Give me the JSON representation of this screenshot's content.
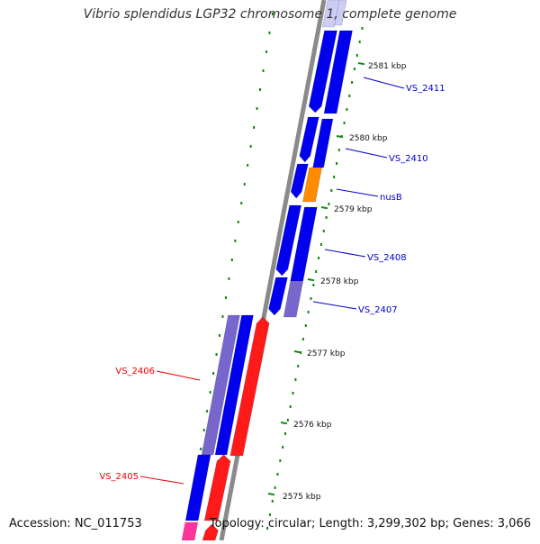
{
  "title": "Vibrio splendidus LGP32 chromosome 1, complete genome",
  "accession_text": "Accession: NC_011753",
  "summary_text": "Topology: circular; Length: 3,299,302 bp; Genes: 3,066",
  "colors": {
    "forward_gene": "#0000ee",
    "reverse_gene": "#ff1a1a",
    "rna_gene": "#ff8c00",
    "pseudo_gene": "#7766cc",
    "pink_gene": "#ff3399",
    "tick": "#118811",
    "backbone": "#808080",
    "forward_label": "#0000cc",
    "reverse_label": "#ee0000"
  },
  "ticks": [
    {
      "label": "2581 kbp"
    },
    {
      "label": "2580 kbp"
    },
    {
      "label": "2579 kbp"
    },
    {
      "label": "2578 kbp"
    },
    {
      "label": "2577 kbp"
    },
    {
      "label": "2576 kbp"
    },
    {
      "label": "2575 kbp"
    }
  ],
  "gene_labels": [
    {
      "name": "VS_2411",
      "strand": "forward"
    },
    {
      "name": "VS_2410",
      "strand": "forward"
    },
    {
      "name": "nusB",
      "strand": "forward"
    },
    {
      "name": "VS_2408",
      "strand": "forward"
    },
    {
      "name": "VS_2407",
      "strand": "forward"
    },
    {
      "name": "VS_2406",
      "strand": "reverse"
    },
    {
      "name": "VS_2405",
      "strand": "reverse"
    }
  ]
}
